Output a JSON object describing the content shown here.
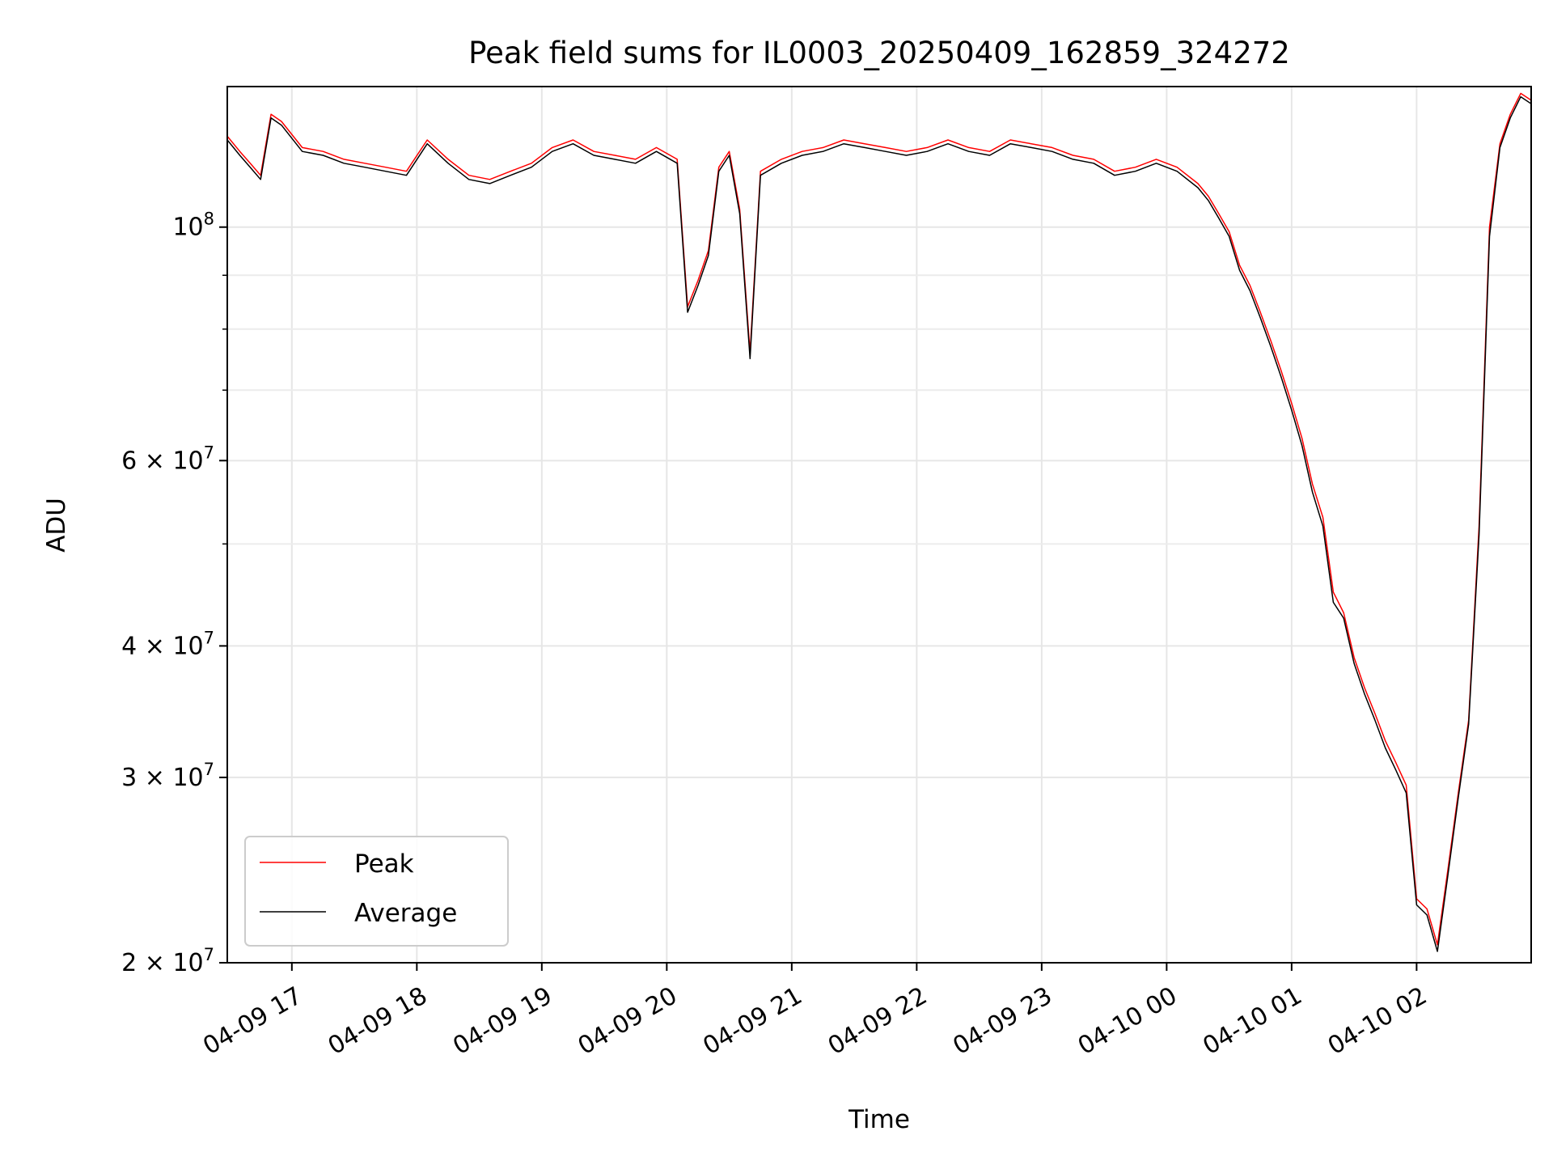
{
  "chart_data": {
    "type": "line",
    "title": "Peak field sums for IL0003_20250409_162859_324272",
    "xlabel": "Time",
    "ylabel": "ADU",
    "y_scale": "log",
    "ylim": [
      20000000,
      136000000
    ],
    "xlim": [
      "2025-04-09 16:29",
      "2025-04-10 02:55"
    ],
    "grid": true,
    "legend_position": "lower-left",
    "x_ticks": [
      {
        "t": "2025-04-09 17:00",
        "label": "04-09 17"
      },
      {
        "t": "2025-04-09 18:00",
        "label": "04-09 18"
      },
      {
        "t": "2025-04-09 19:00",
        "label": "04-09 19"
      },
      {
        "t": "2025-04-09 20:00",
        "label": "04-09 20"
      },
      {
        "t": "2025-04-09 21:00",
        "label": "04-09 21"
      },
      {
        "t": "2025-04-09 22:00",
        "label": "04-09 22"
      },
      {
        "t": "2025-04-09 23:00",
        "label": "04-09 23"
      },
      {
        "t": "2025-04-10 00:00",
        "label": "04-10 00"
      },
      {
        "t": "2025-04-10 01:00",
        "label": "04-10 01"
      },
      {
        "t": "2025-04-10 02:00",
        "label": "04-10 02"
      }
    ],
    "y_ticks": [
      {
        "value": 20000000,
        "mantissa": "2",
        "exp": "7"
      },
      {
        "value": 30000000,
        "mantissa": "3",
        "exp": "7"
      },
      {
        "value": 40000000,
        "mantissa": "4",
        "exp": "7"
      },
      {
        "value": 60000000,
        "mantissa": "6",
        "exp": "7"
      },
      {
        "value": 100000000,
        "mantissa": "",
        "exp": "8"
      }
    ],
    "y_minor_ticks": [
      50000000,
      70000000,
      80000000,
      90000000
    ],
    "series": [
      {
        "name": "Peak",
        "color": "#ff0000",
        "x": [
          "2025-04-09 16:29",
          "2025-04-09 16:35",
          "2025-04-09 16:40",
          "2025-04-09 16:45",
          "2025-04-09 16:50",
          "2025-04-09 16:55",
          "2025-04-09 17:05",
          "2025-04-09 17:15",
          "2025-04-09 17:25",
          "2025-04-09 17:35",
          "2025-04-09 17:45",
          "2025-04-09 17:55",
          "2025-04-09 18:05",
          "2025-04-09 18:15",
          "2025-04-09 18:25",
          "2025-04-09 18:35",
          "2025-04-09 18:45",
          "2025-04-09 18:55",
          "2025-04-09 19:05",
          "2025-04-09 19:15",
          "2025-04-09 19:25",
          "2025-04-09 19:35",
          "2025-04-09 19:45",
          "2025-04-09 19:55",
          "2025-04-09 20:05",
          "2025-04-09 20:10",
          "2025-04-09 20:15",
          "2025-04-09 20:20",
          "2025-04-09 20:25",
          "2025-04-09 20:30",
          "2025-04-09 20:35",
          "2025-04-09 20:40",
          "2025-04-09 20:45",
          "2025-04-09 20:55",
          "2025-04-09 21:05",
          "2025-04-09 21:15",
          "2025-04-09 21:25",
          "2025-04-09 21:35",
          "2025-04-09 21:45",
          "2025-04-09 21:55",
          "2025-04-09 22:05",
          "2025-04-09 22:15",
          "2025-04-09 22:25",
          "2025-04-09 22:35",
          "2025-04-09 22:45",
          "2025-04-09 22:55",
          "2025-04-09 23:05",
          "2025-04-09 23:15",
          "2025-04-09 23:25",
          "2025-04-09 23:35",
          "2025-04-09 23:45",
          "2025-04-09 23:55",
          "2025-04-10 00:05",
          "2025-04-10 00:15",
          "2025-04-10 00:20",
          "2025-04-10 00:25",
          "2025-04-10 00:30",
          "2025-04-10 00:35",
          "2025-04-10 00:40",
          "2025-04-10 00:45",
          "2025-04-10 00:50",
          "2025-04-10 00:55",
          "2025-04-10 01:00",
          "2025-04-10 01:05",
          "2025-04-10 01:10",
          "2025-04-10 01:15",
          "2025-04-10 01:20",
          "2025-04-10 01:25",
          "2025-04-10 01:30",
          "2025-04-10 01:35",
          "2025-04-10 01:40",
          "2025-04-10 01:45",
          "2025-04-10 01:50",
          "2025-04-10 01:55",
          "2025-04-10 02:00",
          "2025-04-10 02:05",
          "2025-04-10 02:10",
          "2025-04-10 02:15",
          "2025-04-10 02:20",
          "2025-04-10 02:25",
          "2025-04-10 02:30",
          "2025-04-10 02:35",
          "2025-04-10 02:40",
          "2025-04-10 02:45",
          "2025-04-10 02:50",
          "2025-04-10 02:55"
        ],
        "y": [
          122000000,
          118000000,
          115000000,
          112000000,
          128000000,
          126000000,
          119000000,
          118000000,
          116000000,
          115000000,
          114000000,
          113000000,
          121000000,
          116000000,
          112000000,
          111000000,
          113000000,
          115000000,
          119000000,
          121000000,
          118000000,
          117000000,
          116000000,
          119000000,
          116000000,
          84000000,
          89000000,
          95000000,
          114000000,
          118000000,
          104000000,
          76000000,
          113000000,
          116000000,
          118000000,
          119000000,
          121000000,
          120000000,
          119000000,
          118000000,
          119000000,
          121000000,
          119000000,
          118000000,
          121000000,
          120000000,
          119000000,
          117000000,
          116000000,
          113000000,
          114000000,
          116000000,
          114000000,
          110000000,
          107000000,
          103000000,
          99000000,
          92000000,
          88000000,
          83000000,
          78000000,
          73000000,
          68000000,
          63000000,
          57000000,
          53000000,
          45000000,
          43000000,
          39000000,
          36500000,
          34500000,
          32500000,
          31000000,
          29500000,
          23000000,
          22500000,
          20800000,
          24500000,
          29000000,
          34000000,
          52000000,
          100000000,
          120000000,
          128000000,
          134000000,
          132000000
        ]
      },
      {
        "name": "Average",
        "color": "#000000",
        "x": [
          "2025-04-09 16:29",
          "2025-04-09 16:35",
          "2025-04-09 16:40",
          "2025-04-09 16:45",
          "2025-04-09 16:50",
          "2025-04-09 16:55",
          "2025-04-09 17:05",
          "2025-04-09 17:15",
          "2025-04-09 17:25",
          "2025-04-09 17:35",
          "2025-04-09 17:45",
          "2025-04-09 17:55",
          "2025-04-09 18:05",
          "2025-04-09 18:15",
          "2025-04-09 18:25",
          "2025-04-09 18:35",
          "2025-04-09 18:45",
          "2025-04-09 18:55",
          "2025-04-09 19:05",
          "2025-04-09 19:15",
          "2025-04-09 19:25",
          "2025-04-09 19:35",
          "2025-04-09 19:45",
          "2025-04-09 19:55",
          "2025-04-09 20:05",
          "2025-04-09 20:10",
          "2025-04-09 20:15",
          "2025-04-09 20:20",
          "2025-04-09 20:25",
          "2025-04-09 20:30",
          "2025-04-09 20:35",
          "2025-04-09 20:40",
          "2025-04-09 20:45",
          "2025-04-09 20:55",
          "2025-04-09 21:05",
          "2025-04-09 21:15",
          "2025-04-09 21:25",
          "2025-04-09 21:35",
          "2025-04-09 21:45",
          "2025-04-09 21:55",
          "2025-04-09 22:05",
          "2025-04-09 22:15",
          "2025-04-09 22:25",
          "2025-04-09 22:35",
          "2025-04-09 22:45",
          "2025-04-09 22:55",
          "2025-04-09 23:05",
          "2025-04-09 23:15",
          "2025-04-09 23:25",
          "2025-04-09 23:35",
          "2025-04-09 23:45",
          "2025-04-09 23:55",
          "2025-04-10 00:05",
          "2025-04-10 00:15",
          "2025-04-10 00:20",
          "2025-04-10 00:25",
          "2025-04-10 00:30",
          "2025-04-10 00:35",
          "2025-04-10 00:40",
          "2025-04-10 00:45",
          "2025-04-10 00:50",
          "2025-04-10 00:55",
          "2025-04-10 01:00",
          "2025-04-10 01:05",
          "2025-04-10 01:10",
          "2025-04-10 01:15",
          "2025-04-10 01:20",
          "2025-04-10 01:25",
          "2025-04-10 01:30",
          "2025-04-10 01:35",
          "2025-04-10 01:40",
          "2025-04-10 01:45",
          "2025-04-10 01:50",
          "2025-04-10 01:55",
          "2025-04-10 02:00",
          "2025-04-10 02:05",
          "2025-04-10 02:10",
          "2025-04-10 02:15",
          "2025-04-10 02:20",
          "2025-04-10 02:25",
          "2025-04-10 02:30",
          "2025-04-10 02:35",
          "2025-04-10 02:40",
          "2025-04-10 02:45",
          "2025-04-10 02:50",
          "2025-04-10 02:55"
        ],
        "y": [
          121000000,
          117000000,
          114000000,
          111000000,
          127000000,
          125000000,
          118000000,
          117000000,
          115000000,
          114000000,
          113000000,
          112000000,
          120000000,
          115000000,
          111000000,
          110000000,
          112000000,
          114000000,
          118000000,
          120000000,
          117000000,
          116000000,
          115000000,
          118000000,
          115000000,
          83000000,
          88000000,
          94000000,
          113000000,
          117000000,
          103000000,
          75000000,
          112000000,
          115000000,
          117000000,
          118000000,
          120000000,
          119000000,
          118000000,
          117000000,
          118000000,
          120000000,
          118000000,
          117000000,
          120000000,
          119000000,
          118000000,
          116000000,
          115000000,
          112000000,
          113000000,
          115000000,
          113000000,
          109000000,
          106000000,
          102000000,
          98000000,
          91000000,
          87000000,
          82000000,
          77000000,
          72000000,
          67000000,
          62000000,
          56000000,
          52000000,
          44000000,
          42500000,
          38500000,
          36000000,
          34000000,
          32000000,
          30500000,
          29000000,
          22700000,
          22200000,
          20500000,
          24200000,
          28700000,
          33700000,
          51000000,
          98000000,
          119000000,
          127000000,
          133000000,
          131000000
        ]
      }
    ]
  }
}
